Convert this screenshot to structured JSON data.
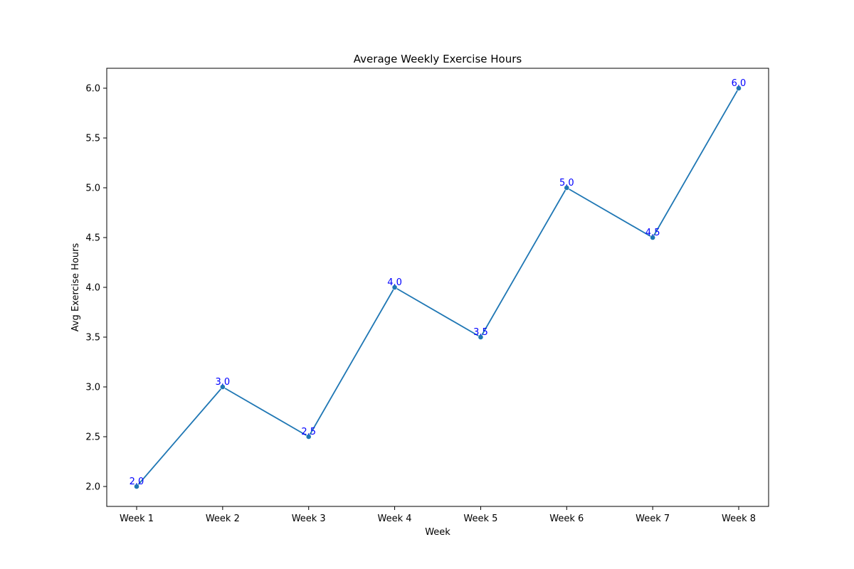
{
  "chart_data": {
    "type": "line",
    "title": "Average Weekly Exercise Hours",
    "xlabel": "Week",
    "ylabel": "Avg Exercise Hours",
    "categories": [
      "Week 1",
      "Week 2",
      "Week 3",
      "Week 4",
      "Week 5",
      "Week 6",
      "Week 7",
      "Week 8"
    ],
    "series": [
      {
        "values": [
          2.0,
          3.0,
          2.5,
          4.0,
          3.5,
          5.0,
          4.5,
          6.0
        ],
        "color": "#1f77b4",
        "marker": "circle"
      }
    ],
    "data_labels": [
      "2.0",
      "3.0",
      "2.5",
      "4.0",
      "3.5",
      "5.0",
      "4.5",
      "6.0"
    ],
    "data_label_color": "#0000ff",
    "ylim": [
      1.8,
      6.2
    ],
    "yticks": [
      2.0,
      2.5,
      3.0,
      3.5,
      4.0,
      4.5,
      5.0,
      5.5,
      6.0
    ],
    "ytick_labels": [
      "2.0",
      "2.5",
      "3.0",
      "3.5",
      "4.0",
      "4.5",
      "5.0",
      "5.5",
      "6.0"
    ],
    "grid": false,
    "legend": "none"
  }
}
